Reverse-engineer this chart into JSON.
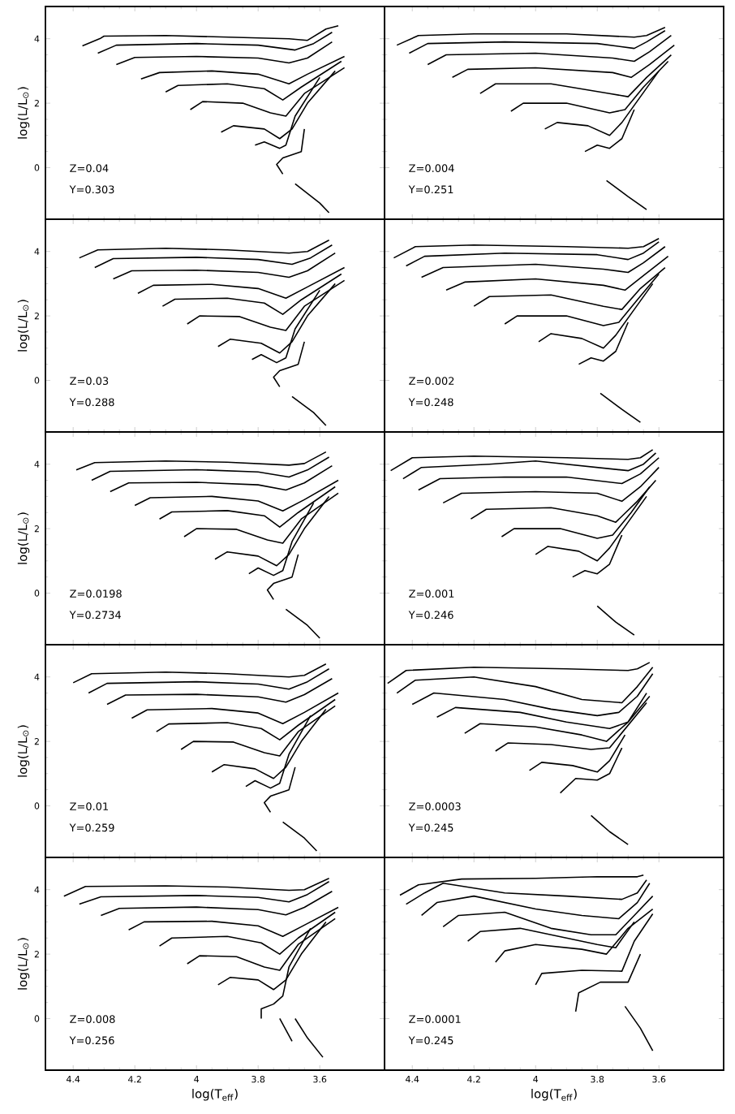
{
  "chart_data": [
    {
      "type": "line",
      "ylabel": "log(L/L$_{⊙}$)",
      "annotations": [
        "Z=0.04",
        "Y=0.303"
      ],
      "xlim": [
        4.49,
        3.39
      ],
      "ylim": [
        -1.6,
        5.0
      ],
      "xticks": [
        4.4,
        4.2,
        4,
        3.8,
        3.6
      ],
      "yticks": [
        0,
        2,
        4
      ],
      "tick_labels": "y",
      "series": [
        {
          "color": "#000000",
          "x": [
            4.37,
            4.31,
            4.3,
            4.1,
            3.9,
            3.7,
            3.64,
            3.58,
            3.54
          ],
          "values": [
            3.78,
            4.02,
            4.08,
            4.1,
            4.05,
            4.0,
            3.95,
            4.3,
            4.4
          ]
        },
        {
          "color": "#000000",
          "x": [
            4.32,
            4.26,
            4.0,
            3.8,
            3.68,
            3.62,
            3.56
          ],
          "values": [
            3.55,
            3.8,
            3.85,
            3.8,
            3.65,
            3.85,
            4.2
          ]
        },
        {
          "color": "#000000",
          "x": [
            4.26,
            4.2,
            4.0,
            3.8,
            3.7,
            3.64,
            3.56
          ],
          "values": [
            3.2,
            3.42,
            3.45,
            3.4,
            3.25,
            3.4,
            3.9
          ]
        },
        {
          "color": "#000000",
          "x": [
            4.18,
            4.12,
            3.95,
            3.8,
            3.7,
            3.64,
            3.52
          ],
          "values": [
            2.75,
            2.95,
            3.0,
            2.9,
            2.6,
            2.9,
            3.45
          ]
        },
        {
          "color": "#000000",
          "x": [
            4.1,
            4.06,
            3.9,
            3.78,
            3.72,
            3.66,
            3.53
          ],
          "values": [
            2.35,
            2.55,
            2.6,
            2.45,
            2.1,
            2.5,
            3.3
          ]
        },
        {
          "color": "#000000",
          "x": [
            4.02,
            3.98,
            3.85,
            3.76,
            3.71,
            3.65,
            3.52
          ],
          "values": [
            1.8,
            2.05,
            2.0,
            1.7,
            1.6,
            2.3,
            3.1
          ]
        },
        {
          "color": "#000000",
          "x": [
            3.92,
            3.88,
            3.78,
            3.73,
            3.69,
            3.64,
            3.55
          ],
          "values": [
            1.1,
            1.3,
            1.2,
            0.9,
            1.2,
            2.0,
            3.0
          ]
        },
        {
          "color": "#000000",
          "x": [
            3.81,
            3.78,
            3.73,
            3.71,
            3.68,
            3.6
          ],
          "values": [
            0.7,
            0.8,
            0.6,
            0.7,
            1.6,
            2.8
          ]
        },
        {
          "color": "#000000",
          "x": [
            3.72,
            3.74,
            3.72,
            3.66,
            3.65
          ],
          "values": [
            -0.2,
            0.1,
            0.3,
            0.5,
            1.2
          ]
        },
        {
          "color": "#000000",
          "x": [
            3.68,
            3.6,
            3.57
          ],
          "values": [
            -0.5,
            -1.1,
            -1.4
          ]
        }
      ]
    },
    {
      "type": "line",
      "annotations": [
        "Z=0.004",
        "Y=0.251"
      ],
      "xlim": [
        4.49,
        3.39
      ],
      "ylim": [
        -1.6,
        5.0
      ],
      "xticks": [
        4.4,
        4.2,
        4,
        3.8,
        3.6
      ],
      "yticks": [
        0,
        2,
        4
      ],
      "tick_labels": false,
      "series": [
        {
          "color": "#000000",
          "x": [
            4.45,
            4.38,
            4.2,
            3.9,
            3.68,
            3.64,
            3.58
          ],
          "values": [
            3.8,
            4.1,
            4.15,
            4.15,
            4.05,
            4.1,
            4.35
          ]
        },
        {
          "color": "#000000",
          "x": [
            4.41,
            4.35,
            4.1,
            3.8,
            3.68,
            3.64,
            3.58
          ],
          "values": [
            3.55,
            3.85,
            3.9,
            3.85,
            3.7,
            3.9,
            4.25
          ]
        },
        {
          "color": "#000000",
          "x": [
            4.35,
            4.29,
            4.0,
            3.75,
            3.68,
            3.63,
            3.56
          ],
          "values": [
            3.2,
            3.5,
            3.55,
            3.4,
            3.3,
            3.6,
            4.1
          ]
        },
        {
          "color": "#000000",
          "x": [
            4.27,
            4.22,
            4.0,
            3.75,
            3.69,
            3.63,
            3.55
          ],
          "values": [
            2.8,
            3.05,
            3.1,
            2.95,
            2.8,
            3.2,
            3.8
          ]
        },
        {
          "color": "#000000",
          "x": [
            4.18,
            4.13,
            3.95,
            3.76,
            3.7,
            3.64,
            3.56
          ],
          "values": [
            2.3,
            2.6,
            2.6,
            2.3,
            2.2,
            2.8,
            3.5
          ]
        },
        {
          "color": "#000000",
          "x": [
            4.08,
            4.04,
            3.9,
            3.76,
            3.71,
            3.65,
            3.57
          ],
          "values": [
            1.75,
            2.0,
            2.0,
            1.7,
            1.8,
            2.5,
            3.3
          ]
        },
        {
          "color": "#000000",
          "x": [
            3.97,
            3.93,
            3.83,
            3.76,
            3.72,
            3.66,
            3.6
          ],
          "values": [
            1.2,
            1.4,
            1.3,
            1.0,
            1.4,
            2.2,
            3.0
          ]
        },
        {
          "color": "#000000",
          "x": [
            3.84,
            3.8,
            3.76,
            3.72,
            3.68
          ],
          "values": [
            0.5,
            0.7,
            0.6,
            0.9,
            1.8
          ]
        },
        {
          "color": "#000000",
          "x": [
            3.77,
            3.7,
            3.64
          ],
          "values": [
            -0.4,
            -0.9,
            -1.3
          ]
        }
      ]
    },
    {
      "type": "line",
      "ylabel": "log(L/L$_{⊙}$)",
      "annotations": [
        "Z=0.03",
        "Y=0.288"
      ],
      "xlim": [
        4.49,
        3.39
      ],
      "ylim": [
        -1.6,
        5.0
      ],
      "xticks": [
        4.4,
        4.2,
        4,
        3.8,
        3.6
      ],
      "yticks": [
        0,
        2,
        4
      ],
      "tick_labels": "y",
      "series": [
        {
          "color": "#000000",
          "x": [
            4.38,
            4.32,
            4.1,
            3.9,
            3.7,
            3.64,
            3.57
          ],
          "values": [
            3.8,
            4.05,
            4.1,
            4.05,
            3.95,
            4.0,
            4.35
          ]
        },
        {
          "color": "#000000",
          "x": [
            4.33,
            4.27,
            4.0,
            3.8,
            3.69,
            3.63,
            3.56
          ],
          "values": [
            3.5,
            3.78,
            3.82,
            3.75,
            3.6,
            3.8,
            4.2
          ]
        },
        {
          "color": "#000000",
          "x": [
            4.27,
            4.21,
            4.0,
            3.8,
            3.7,
            3.64,
            3.55
          ],
          "values": [
            3.15,
            3.4,
            3.42,
            3.35,
            3.2,
            3.4,
            3.95
          ]
        },
        {
          "color": "#000000",
          "x": [
            4.19,
            4.14,
            3.95,
            3.8,
            3.71,
            3.64,
            3.52
          ],
          "values": [
            2.7,
            2.95,
            2.98,
            2.85,
            2.55,
            2.9,
            3.5
          ]
        },
        {
          "color": "#000000",
          "x": [
            4.11,
            4.07,
            3.9,
            3.78,
            3.72,
            3.66,
            3.53
          ],
          "values": [
            2.3,
            2.52,
            2.55,
            2.4,
            2.05,
            2.5,
            3.3
          ]
        },
        {
          "color": "#000000",
          "x": [
            4.03,
            3.99,
            3.86,
            3.76,
            3.71,
            3.65,
            3.52
          ],
          "values": [
            1.75,
            2.0,
            1.98,
            1.65,
            1.55,
            2.3,
            3.1
          ]
        },
        {
          "color": "#000000",
          "x": [
            3.93,
            3.89,
            3.79,
            3.73,
            3.69,
            3.64,
            3.55
          ],
          "values": [
            1.05,
            1.28,
            1.15,
            0.85,
            1.2,
            2.0,
            3.0
          ]
        },
        {
          "color": "#000000",
          "x": [
            3.82,
            3.79,
            3.74,
            3.71,
            3.68,
            3.6
          ],
          "values": [
            0.65,
            0.8,
            0.55,
            0.7,
            1.6,
            2.8
          ]
        },
        {
          "color": "#000000",
          "x": [
            3.73,
            3.75,
            3.73,
            3.67,
            3.65
          ],
          "values": [
            -0.2,
            0.1,
            0.3,
            0.5,
            1.2
          ]
        },
        {
          "color": "#000000",
          "x": [
            3.69,
            3.62,
            3.58
          ],
          "values": [
            -0.5,
            -1.0,
            -1.4
          ]
        }
      ]
    },
    {
      "type": "line",
      "annotations": [
        "Z=0.002",
        "Y=0.248"
      ],
      "xlim": [
        4.49,
        3.39
      ],
      "ylim": [
        -1.6,
        5.0
      ],
      "xticks": [
        4.4,
        4.2,
        4,
        3.8,
        3.6
      ],
      "yticks": [
        0,
        2,
        4
      ],
      "tick_labels": false,
      "series": [
        {
          "color": "#000000",
          "x": [
            4.46,
            4.39,
            4.2,
            3.9,
            3.7,
            3.65,
            3.6
          ],
          "values": [
            3.8,
            4.15,
            4.2,
            4.15,
            4.1,
            4.15,
            4.4
          ]
        },
        {
          "color": "#000000",
          "x": [
            4.42,
            4.36,
            4.1,
            3.8,
            3.7,
            3.65,
            3.6
          ],
          "values": [
            3.55,
            3.85,
            3.95,
            3.9,
            3.75,
            3.95,
            4.3
          ]
        },
        {
          "color": "#000000",
          "x": [
            4.37,
            4.3,
            4.0,
            3.78,
            3.7,
            3.65,
            3.58
          ],
          "values": [
            3.2,
            3.5,
            3.6,
            3.45,
            3.35,
            3.65,
            4.15
          ]
        },
        {
          "color": "#000000",
          "x": [
            4.29,
            4.23,
            4.0,
            3.78,
            3.71,
            3.65,
            3.57
          ],
          "values": [
            2.8,
            3.05,
            3.15,
            2.95,
            2.8,
            3.25,
            3.85
          ]
        },
        {
          "color": "#000000",
          "x": [
            4.2,
            4.15,
            3.95,
            3.78,
            3.72,
            3.66,
            3.58
          ],
          "values": [
            2.3,
            2.6,
            2.65,
            2.3,
            2.2,
            2.85,
            3.5
          ]
        },
        {
          "color": "#000000",
          "x": [
            4.1,
            4.06,
            3.9,
            3.78,
            3.73,
            3.67,
            3.6
          ],
          "values": [
            1.75,
            2.0,
            2.0,
            1.7,
            1.8,
            2.5,
            3.3
          ]
        },
        {
          "color": "#000000",
          "x": [
            3.99,
            3.95,
            3.85,
            3.78,
            3.74,
            3.68,
            3.62
          ],
          "values": [
            1.2,
            1.45,
            1.3,
            1.0,
            1.4,
            2.2,
            3.0
          ]
        },
        {
          "color": "#000000",
          "x": [
            3.86,
            3.82,
            3.78,
            3.74,
            3.7
          ],
          "values": [
            0.5,
            0.7,
            0.6,
            0.9,
            1.8
          ]
        },
        {
          "color": "#000000",
          "x": [
            3.79,
            3.72,
            3.66
          ],
          "values": [
            -0.4,
            -0.9,
            -1.3
          ]
        }
      ]
    },
    {
      "type": "line",
      "ylabel": "log(L/L$_{⊙}$)",
      "annotations": [
        "Z=0.0198",
        "Y=0.2734"
      ],
      "xlim": [
        4.49,
        3.39
      ],
      "ylim": [
        -1.6,
        5.0
      ],
      "xticks": [
        4.4,
        4.2,
        4,
        3.8,
        3.6
      ],
      "yticks": [
        0,
        2,
        4
      ],
      "tick_labels": "y",
      "series": [
        {
          "color": "#000000",
          "x": [
            4.39,
            4.33,
            4.1,
            3.9,
            3.7,
            3.65,
            3.58
          ],
          "values": [
            3.82,
            4.05,
            4.1,
            4.06,
            3.97,
            4.02,
            4.38
          ]
        },
        {
          "color": "#000000",
          "x": [
            4.34,
            4.28,
            4.0,
            3.8,
            3.7,
            3.64,
            3.57
          ],
          "values": [
            3.5,
            3.78,
            3.83,
            3.76,
            3.6,
            3.82,
            4.22
          ]
        },
        {
          "color": "#000000",
          "x": [
            4.28,
            4.22,
            4.0,
            3.8,
            3.71,
            3.65,
            3.56
          ],
          "values": [
            3.15,
            3.42,
            3.44,
            3.36,
            3.2,
            3.42,
            3.95
          ]
        },
        {
          "color": "#000000",
          "x": [
            4.2,
            4.15,
            3.95,
            3.8,
            3.72,
            3.65,
            3.54
          ],
          "values": [
            2.72,
            2.96,
            3.0,
            2.86,
            2.55,
            2.9,
            3.5
          ]
        },
        {
          "color": "#000000",
          "x": [
            4.12,
            4.08,
            3.9,
            3.78,
            3.73,
            3.67,
            3.55
          ],
          "values": [
            2.3,
            2.52,
            2.56,
            2.4,
            2.05,
            2.5,
            3.3
          ]
        },
        {
          "color": "#000000",
          "x": [
            4.04,
            4.0,
            3.87,
            3.77,
            3.72,
            3.66,
            3.54
          ],
          "values": [
            1.75,
            2.0,
            1.98,
            1.65,
            1.55,
            2.3,
            3.1
          ]
        },
        {
          "color": "#000000",
          "x": [
            3.94,
            3.9,
            3.8,
            3.74,
            3.7,
            3.65,
            3.57
          ],
          "values": [
            1.05,
            1.28,
            1.15,
            0.85,
            1.2,
            2.0,
            3.0
          ]
        },
        {
          "color": "#000000",
          "x": [
            3.83,
            3.8,
            3.75,
            3.72,
            3.69,
            3.62
          ],
          "values": [
            0.6,
            0.78,
            0.55,
            0.7,
            1.6,
            2.8
          ]
        },
        {
          "color": "#000000",
          "x": [
            3.75,
            3.77,
            3.75,
            3.69,
            3.67
          ],
          "values": [
            -0.2,
            0.1,
            0.3,
            0.5,
            1.2
          ]
        },
        {
          "color": "#000000",
          "x": [
            3.71,
            3.64,
            3.6
          ],
          "values": [
            -0.5,
            -1.0,
            -1.4
          ]
        }
      ]
    },
    {
      "type": "line",
      "annotations": [
        "Z=0.001",
        "Y=0.246"
      ],
      "xlim": [
        4.49,
        3.39
      ],
      "ylim": [
        -1.6,
        5.0
      ],
      "xticks": [
        4.4,
        4.2,
        4,
        3.8,
        3.6
      ],
      "yticks": [
        0,
        2,
        4
      ],
      "tick_labels": false,
      "series": [
        {
          "color": "#000000",
          "x": [
            4.47,
            4.4,
            4.2,
            3.9,
            3.7,
            3.66,
            3.62
          ],
          "values": [
            3.8,
            4.2,
            4.25,
            4.2,
            4.15,
            4.2,
            4.45
          ]
        },
        {
          "color": "#000000",
          "x": [
            4.43,
            4.37,
            4.15,
            4.0,
            3.8,
            3.7,
            3.65,
            3.61
          ],
          "values": [
            3.55,
            3.9,
            4.0,
            4.1,
            3.9,
            3.8,
            4.0,
            4.35
          ]
        },
        {
          "color": "#000000",
          "x": [
            4.38,
            4.31,
            4.1,
            3.9,
            3.72,
            3.66,
            3.6
          ],
          "values": [
            3.2,
            3.55,
            3.6,
            3.6,
            3.4,
            3.7,
            4.2
          ]
        },
        {
          "color": "#000000",
          "x": [
            4.3,
            4.24,
            4.0,
            3.8,
            3.72,
            3.66,
            3.6
          ],
          "values": [
            2.8,
            3.1,
            3.15,
            3.1,
            2.85,
            3.3,
            3.9
          ]
        },
        {
          "color": "#000000",
          "x": [
            4.21,
            4.16,
            3.95,
            3.8,
            3.74,
            3.67,
            3.61
          ],
          "values": [
            2.3,
            2.6,
            2.65,
            2.4,
            2.2,
            2.85,
            3.5
          ]
        },
        {
          "color": "#000000",
          "x": [
            4.11,
            4.07,
            3.92,
            3.8,
            3.75,
            3.69,
            3.63
          ],
          "values": [
            1.75,
            2.0,
            2.0,
            1.7,
            1.8,
            2.5,
            3.3
          ]
        },
        {
          "color": "#000000",
          "x": [
            4.0,
            3.96,
            3.86,
            3.8,
            3.76,
            3.7,
            3.64
          ],
          "values": [
            1.2,
            1.45,
            1.3,
            1.0,
            1.4,
            2.2,
            3.0
          ]
        },
        {
          "color": "#000000",
          "x": [
            3.88,
            3.84,
            3.8,
            3.76,
            3.72
          ],
          "values": [
            0.5,
            0.7,
            0.6,
            0.9,
            1.8
          ]
        },
        {
          "color": "#000000",
          "x": [
            3.8,
            3.74,
            3.68
          ],
          "values": [
            -0.4,
            -0.9,
            -1.3
          ]
        }
      ]
    },
    {
      "type": "line",
      "ylabel": "log(L/L$_{⊙}$)",
      "annotations": [
        "Z=0.01",
        "Y=0.259"
      ],
      "xlim": [
        4.49,
        3.39
      ],
      "ylim": [
        -1.6,
        5.0
      ],
      "xticks": [
        4.4,
        4.2,
        4,
        3.8,
        3.6
      ],
      "yticks": [
        0,
        2,
        4
      ],
      "tick_labels": "y",
      "series": [
        {
          "color": "#000000",
          "x": [
            4.4,
            4.34,
            4.1,
            3.9,
            3.7,
            3.65,
            3.58
          ],
          "values": [
            3.82,
            4.1,
            4.15,
            4.1,
            4.0,
            4.05,
            4.4
          ]
        },
        {
          "color": "#000000",
          "x": [
            4.35,
            4.29,
            4.0,
            3.8,
            3.7,
            3.64,
            3.57
          ],
          "values": [
            3.5,
            3.8,
            3.85,
            3.78,
            3.62,
            3.85,
            4.25
          ]
        },
        {
          "color": "#000000",
          "x": [
            4.29,
            4.23,
            4.0,
            3.8,
            3.71,
            3.65,
            3.56
          ],
          "values": [
            3.15,
            3.44,
            3.46,
            3.38,
            3.22,
            3.45,
            3.95
          ]
        },
        {
          "color": "#000000",
          "x": [
            4.21,
            4.16,
            3.95,
            3.8,
            3.72,
            3.65,
            3.54
          ],
          "values": [
            2.72,
            2.98,
            3.02,
            2.88,
            2.55,
            2.9,
            3.5
          ]
        },
        {
          "color": "#000000",
          "x": [
            4.13,
            4.09,
            3.9,
            3.79,
            3.73,
            3.67,
            3.55
          ],
          "values": [
            2.3,
            2.54,
            2.58,
            2.4,
            2.05,
            2.5,
            3.3
          ]
        },
        {
          "color": "#000000",
          "x": [
            4.05,
            4.01,
            3.88,
            3.78,
            3.73,
            3.67,
            3.55
          ],
          "values": [
            1.75,
            2.0,
            1.98,
            1.65,
            1.55,
            2.3,
            3.1
          ]
        },
        {
          "color": "#000000",
          "x": [
            3.95,
            3.91,
            3.81,
            3.75,
            3.71,
            3.66,
            3.58
          ],
          "values": [
            1.05,
            1.28,
            1.15,
            0.85,
            1.2,
            2.0,
            3.0
          ]
        },
        {
          "color": "#000000",
          "x": [
            3.84,
            3.81,
            3.76,
            3.73,
            3.7,
            3.63
          ],
          "values": [
            0.6,
            0.78,
            0.55,
            0.7,
            1.6,
            2.8
          ]
        },
        {
          "color": "#000000",
          "x": [
            3.76,
            3.78,
            3.76,
            3.7,
            3.68
          ],
          "values": [
            -0.2,
            0.1,
            0.3,
            0.5,
            1.2
          ]
        },
        {
          "color": "#000000",
          "x": [
            3.72,
            3.65,
            3.61
          ],
          "values": [
            -0.5,
            -1.0,
            -1.4
          ]
        }
      ]
    },
    {
      "type": "line",
      "annotations": [
        "Z=0.0003",
        "Y=0.245"
      ],
      "xlim": [
        4.49,
        3.39
      ],
      "ylim": [
        -1.6,
        5.0
      ],
      "xticks": [
        4.4,
        4.2,
        4,
        3.8,
        3.6
      ],
      "yticks": [
        0,
        2,
        4
      ],
      "tick_labels": false,
      "series": [
        {
          "color": "#000000",
          "x": [
            4.48,
            4.42,
            4.2,
            3.9,
            3.7,
            3.67,
            3.63
          ],
          "values": [
            3.8,
            4.2,
            4.3,
            4.25,
            4.2,
            4.25,
            4.45
          ]
        },
        {
          "color": "#000000",
          "x": [
            4.45,
            4.39,
            4.2,
            4.0,
            3.85,
            3.72,
            3.67,
            3.62
          ],
          "values": [
            3.5,
            3.9,
            4.0,
            3.7,
            3.3,
            3.2,
            3.7,
            4.3
          ]
        },
        {
          "color": "#000000",
          "x": [
            4.4,
            4.33,
            4.1,
            3.95,
            3.8,
            3.73,
            3.67,
            3.62
          ],
          "values": [
            3.15,
            3.5,
            3.3,
            3.0,
            2.8,
            2.9,
            3.4,
            4.1
          ]
        },
        {
          "color": "#000000",
          "x": [
            4.32,
            4.26,
            4.05,
            3.9,
            3.76,
            3.7,
            3.64
          ],
          "values": [
            2.75,
            3.05,
            2.9,
            2.6,
            2.4,
            2.6,
            3.5
          ]
        },
        {
          "color": "#000000",
          "x": [
            4.23,
            4.18,
            4.0,
            3.85,
            3.77,
            3.7,
            3.63
          ],
          "values": [
            2.25,
            2.55,
            2.45,
            2.2,
            2.0,
            2.6,
            3.4
          ]
        },
        {
          "color": "#000000",
          "x": [
            4.13,
            4.09,
            3.95,
            3.82,
            3.76,
            3.7,
            3.64
          ],
          "values": [
            1.7,
            1.95,
            1.9,
            1.75,
            1.8,
            2.5,
            3.2
          ]
        },
        {
          "color": "#000000",
          "x": [
            4.02,
            3.98,
            3.88,
            3.8,
            3.76,
            3.71
          ],
          "values": [
            1.1,
            1.35,
            1.25,
            1.05,
            1.4,
            2.2
          ]
        },
        {
          "color": "#000000",
          "x": [
            3.92,
            3.87,
            3.8,
            3.76,
            3.72
          ],
          "values": [
            0.4,
            0.85,
            0.8,
            1.0,
            1.8
          ]
        },
        {
          "color": "#000000",
          "x": [
            3.82,
            3.76,
            3.7
          ],
          "values": [
            -0.3,
            -0.8,
            -1.2
          ]
        }
      ]
    },
    {
      "type": "line",
      "xlabel": "log(T$_{eff}$)",
      "ylabel": "log(L/L$_{⊙}$)",
      "annotations": [
        "Z=0.008",
        "Y=0.256"
      ],
      "xlim": [
        4.49,
        3.39
      ],
      "ylim": [
        -1.6,
        5.0
      ],
      "xticks": [
        4.4,
        4.2,
        4,
        3.8,
        3.6
      ],
      "yticks": [
        0,
        2,
        4
      ],
      "series": [
        {
          "color": "#000000",
          "x": [
            4.43,
            4.36,
            4.1,
            3.9,
            3.7,
            3.65,
            3.57
          ],
          "values": [
            3.8,
            4.1,
            4.12,
            4.08,
            3.98,
            4.0,
            4.35
          ]
        },
        {
          "color": "#000000",
          "x": [
            4.38,
            4.31,
            4.0,
            3.8,
            3.7,
            3.64,
            3.57
          ],
          "values": [
            3.55,
            3.78,
            3.82,
            3.76,
            3.62,
            3.85,
            4.25
          ]
        },
        {
          "color": "#000000",
          "x": [
            4.31,
            4.25,
            4.0,
            3.8,
            3.71,
            3.65,
            3.56
          ],
          "values": [
            3.2,
            3.42,
            3.46,
            3.38,
            3.22,
            3.45,
            3.95
          ]
        },
        {
          "color": "#000000",
          "x": [
            4.22,
            4.17,
            3.95,
            3.8,
            3.72,
            3.65,
            3.54
          ],
          "values": [
            2.75,
            3.0,
            3.02,
            2.88,
            2.55,
            2.9,
            3.45
          ]
        },
        {
          "color": "#000000",
          "x": [
            4.12,
            4.08,
            3.9,
            3.79,
            3.73,
            3.67,
            3.55
          ],
          "values": [
            2.25,
            2.5,
            2.55,
            2.35,
            2.0,
            2.5,
            3.3
          ]
        },
        {
          "color": "#000000",
          "x": [
            4.03,
            3.99,
            3.87,
            3.78,
            3.73,
            3.67,
            3.55
          ],
          "values": [
            1.7,
            1.95,
            1.92,
            1.6,
            1.5,
            2.3,
            3.1
          ]
        },
        {
          "color": "#000000",
          "x": [
            3.93,
            3.89,
            3.8,
            3.75,
            3.71,
            3.66,
            3.58
          ],
          "values": [
            1.05,
            1.28,
            1.2,
            0.9,
            1.2,
            2.0,
            3.0
          ]
        },
        {
          "color": "#000000",
          "x": [
            3.79,
            3.79,
            3.75,
            3.72,
            3.7,
            3.63
          ],
          "values": [
            0.0,
            0.3,
            0.45,
            0.7,
            1.6,
            2.8
          ]
        },
        {
          "color": "#000000",
          "x": [
            3.68,
            3.64,
            3.59
          ],
          "values": [
            0.0,
            -0.6,
            -1.2
          ]
        },
        {
          "color": "#000000",
          "x": [
            3.73,
            3.71,
            3.69
          ],
          "values": [
            0.0,
            -0.35,
            -0.7
          ]
        }
      ]
    },
    {
      "type": "line",
      "xlabel": "log(T$_{eff}$)",
      "annotations": [
        "Z=0.0001",
        "Y=0.245"
      ],
      "xlim": [
        4.49,
        3.39
      ],
      "ylim": [
        -1.6,
        5.0
      ],
      "xticks": [
        4.4,
        4.2,
        4,
        3.8,
        3.6
      ],
      "yticks": [
        0,
        2,
        4
      ],
      "tick_labels": "x",
      "series": [
        {
          "color": "#000000",
          "x": [
            4.44,
            4.38,
            4.24,
            4.0,
            3.8,
            3.67,
            3.65
          ],
          "values": [
            3.83,
            4.15,
            4.33,
            4.35,
            4.4,
            4.4,
            4.45
          ]
        },
        {
          "color": "#000000",
          "x": [
            4.42,
            4.36,
            4.3,
            4.1,
            3.9,
            3.72,
            3.67,
            3.64
          ],
          "values": [
            3.55,
            3.9,
            4.2,
            3.9,
            3.8,
            3.7,
            3.9,
            4.3
          ]
        },
        {
          "color": "#000000",
          "x": [
            4.37,
            4.32,
            4.2,
            4.0,
            3.85,
            3.73,
            3.67,
            3.63
          ],
          "values": [
            3.2,
            3.6,
            3.8,
            3.4,
            3.2,
            3.1,
            3.6,
            4.2
          ]
        },
        {
          "color": "#000000",
          "x": [
            4.3,
            4.25,
            4.1,
            3.95,
            3.82,
            3.74,
            3.68,
            3.62
          ],
          "values": [
            2.85,
            3.2,
            3.3,
            2.8,
            2.6,
            2.6,
            3.2,
            3.8
          ]
        },
        {
          "color": "#000000",
          "x": [
            4.22,
            4.18,
            4.05,
            3.9,
            3.8,
            3.74,
            3.68
          ],
          "values": [
            2.4,
            2.7,
            2.8,
            2.5,
            2.3,
            2.2,
            3.0
          ]
        },
        {
          "color": "#000000",
          "x": [
            4.13,
            4.1,
            4.0,
            3.85,
            3.77,
            3.7,
            3.62
          ],
          "values": [
            1.75,
            2.1,
            2.3,
            2.15,
            2.0,
            2.8,
            3.4
          ]
        },
        {
          "color": "#000000",
          "x": [
            4.0,
            3.98,
            3.85,
            3.72,
            3.68,
            3.62
          ],
          "values": [
            1.05,
            1.4,
            1.5,
            1.47,
            2.4,
            3.25
          ]
        },
        {
          "color": "#000000",
          "x": [
            3.87,
            3.86,
            3.79,
            3.7,
            3.66
          ],
          "values": [
            0.22,
            0.8,
            1.13,
            1.13,
            2.0
          ]
        },
        {
          "color": "#000000",
          "x": [
            3.71,
            3.66,
            3.62
          ],
          "values": [
            0.38,
            -0.3,
            -1.0
          ]
        }
      ]
    }
  ]
}
